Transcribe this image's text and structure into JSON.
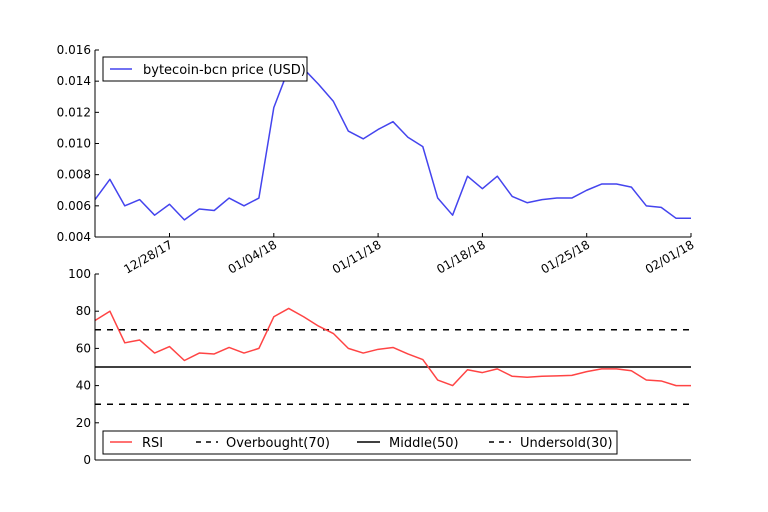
{
  "colors": {
    "price_line": "#4444ee",
    "rsi_line": "#ff4444",
    "ref_line": "#000000",
    "axis": "#000000"
  },
  "chart_data": [
    {
      "type": "line",
      "title": "",
      "xlabel": "",
      "ylabel": "",
      "ylim": [
        0.004,
        0.016
      ],
      "yticks": [
        "0.004",
        "0.006",
        "0.008",
        "0.010",
        "0.012",
        "0.014",
        "0.016"
      ],
      "xtick_labels": [
        "12/28/17",
        "01/04/18",
        "01/11/18",
        "01/18/18",
        "01/25/18",
        "02/01/18"
      ],
      "legend": {
        "placement": "upper-left",
        "entries": [
          "bytecoin-bcn price (USD)"
        ]
      },
      "series": [
        {
          "name": "bytecoin-bcn price (USD)",
          "color": "#4444ee",
          "x": [
            "2017-12-23",
            "2017-12-24",
            "2017-12-25",
            "2017-12-26",
            "2017-12-27",
            "2017-12-28",
            "2017-12-29",
            "2017-12-30",
            "2017-12-31",
            "2018-01-01",
            "2018-01-02",
            "2018-01-03",
            "2018-01-04",
            "2018-01-05",
            "2018-01-06",
            "2018-01-07",
            "2018-01-08",
            "2018-01-09",
            "2018-01-10",
            "2018-01-11",
            "2018-01-12",
            "2018-01-13",
            "2018-01-14",
            "2018-01-15",
            "2018-01-16",
            "2018-01-17",
            "2018-01-18",
            "2018-01-19",
            "2018-01-20",
            "2018-01-21",
            "2018-01-22",
            "2018-01-23",
            "2018-01-24",
            "2018-01-25",
            "2018-01-26",
            "2018-01-27",
            "2018-01-28",
            "2018-01-29",
            "2018-01-30",
            "2018-01-31",
            "2018-02-01"
          ],
          "values": [
            0.0064,
            0.0077,
            0.006,
            0.0064,
            0.0054,
            0.0061,
            0.0051,
            0.0058,
            0.0057,
            0.0065,
            0.006,
            0.0065,
            0.0123,
            0.0148,
            0.0148,
            0.0138,
            0.0127,
            0.0108,
            0.0103,
            0.0109,
            0.0114,
            0.0104,
            0.0098,
            0.0065,
            0.0054,
            0.0079,
            0.0071,
            0.0079,
            0.0066,
            0.0062,
            0.0064,
            0.0065,
            0.0065,
            0.007,
            0.0074,
            0.0074,
            0.0072,
            0.006,
            0.0059,
            0.0052,
            0.0052
          ]
        }
      ]
    },
    {
      "type": "line",
      "title": "",
      "xlabel": "",
      "ylabel": "",
      "ylim": [
        0,
        100
      ],
      "yticks": [
        "0",
        "20",
        "40",
        "60",
        "80",
        "100"
      ],
      "legend": {
        "placement": "bottom",
        "entries": [
          "RSI",
          "Overbought(70)",
          "Middle(50)",
          "Undersold(30)"
        ]
      },
      "series": [
        {
          "name": "RSI",
          "color": "#ff4444",
          "x": [
            "2017-12-23",
            "2017-12-24",
            "2017-12-25",
            "2017-12-26",
            "2017-12-27",
            "2017-12-28",
            "2017-12-29",
            "2017-12-30",
            "2017-12-31",
            "2018-01-01",
            "2018-01-02",
            "2018-01-03",
            "2018-01-04",
            "2018-01-05",
            "2018-01-06",
            "2018-01-07",
            "2018-01-08",
            "2018-01-09",
            "2018-01-10",
            "2018-01-11",
            "2018-01-12",
            "2018-01-13",
            "2018-01-14",
            "2018-01-15",
            "2018-01-16",
            "2018-01-17",
            "2018-01-18",
            "2018-01-19",
            "2018-01-20",
            "2018-01-21",
            "2018-01-22",
            "2018-01-23",
            "2018-01-24",
            "2018-01-25",
            "2018-01-26",
            "2018-01-27",
            "2018-01-28",
            "2018-01-29",
            "2018-01-30",
            "2018-01-31",
            "2018-02-01"
          ],
          "values": [
            75,
            80,
            63,
            64.5,
            57.5,
            61,
            53.5,
            57.5,
            57,
            60.5,
            57.5,
            60,
            77,
            81.5,
            77,
            72,
            68,
            60,
            57.5,
            59.5,
            60.5,
            57,
            54,
            43,
            40,
            48.5,
            47,
            49,
            45,
            44.5,
            45,
            45.2,
            45.5,
            47.5,
            49,
            49,
            48,
            43,
            42.5,
            40,
            40
          ]
        },
        {
          "name": "Overbought(70)",
          "color": "#000000",
          "dash": "dashed",
          "constant": 70
        },
        {
          "name": "Middle(50)",
          "color": "#000000",
          "dash": "solid",
          "constant": 50
        },
        {
          "name": "Undersold(30)",
          "color": "#000000",
          "dash": "dashed",
          "constant": 30
        }
      ]
    }
  ]
}
